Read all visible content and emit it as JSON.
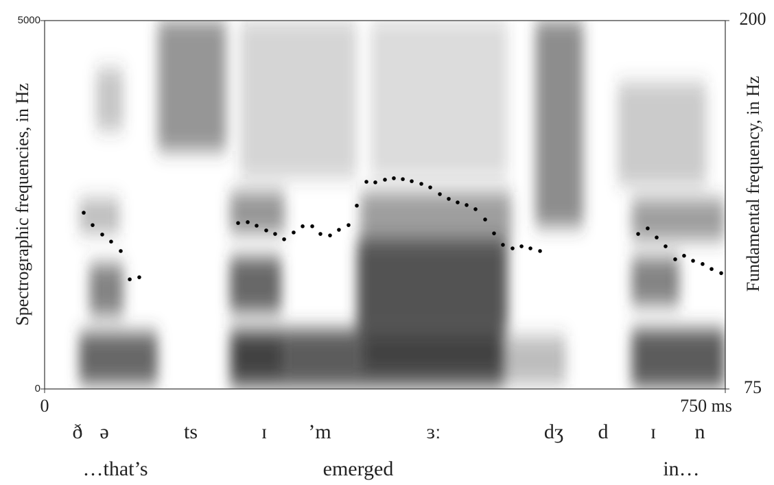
{
  "chart_data": {
    "type": "scatter",
    "y_label": "Spectrographic frequencies, in Hz",
    "y2_label": "Fundamental frequency, in Hz",
    "xlim": [
      0,
      750
    ],
    "xticks": [
      0,
      {
        "value": 750,
        "label": "750 ms"
      }
    ],
    "ylim": [
      0,
      5000
    ],
    "yticks": [
      0,
      5000
    ],
    "y2lim": [
      75,
      200
    ],
    "y2ticks": [
      75,
      200
    ],
    "series": [
      {
        "color": "#000000",
        "axis": "y2",
        "x": [
          43.1,
          52.9,
          63.5,
          73.3,
          83.9,
          93.8,
          104.3,
          213.2,
          223.8,
          233.6,
          244.2,
          254.0,
          263.9,
          274.4,
          284.3,
          294.9,
          303.9,
          314.5,
          324.3,
          334.9,
          344.0,
          354.6,
          364.4,
          375.0,
          384.8,
          394.7,
          404.5,
          415.1,
          424.9,
          435.5,
          445.3,
          455.1,
          465.0,
          474.8,
          485.4,
          495.2,
          505.0,
          515.6,
          525.5,
          535.3,
          545.9,
          654.0,
          664.5,
          674.4,
          684.2,
          694.8,
          704.6,
          714.5,
          725.0,
          734.9,
          745.5
        ],
        "values": [
          134.8,
          130.6,
          127.4,
          125.0,
          121.8,
          112.2,
          112.9,
          131.3,
          131.6,
          130.4,
          128.8,
          127.6,
          125.8,
          128.1,
          130.2,
          130.2,
          127.6,
          127.1,
          129.0,
          130.6,
          137.2,
          145.3,
          145.1,
          146.0,
          146.5,
          146.2,
          145.5,
          144.6,
          143.4,
          141.1,
          139.5,
          138.3,
          137.4,
          136.0,
          132.5,
          127.8,
          123.9,
          122.7,
          123.4,
          122.7,
          121.8,
          127.6,
          129.5,
          126.4,
          123.4,
          119.0,
          120.2,
          118.5,
          117.4,
          115.7,
          114.3
        ]
      }
    ]
  },
  "transcription": {
    "segments": [
      "ð",
      "ə",
      "ts",
      "ɪ",
      "’m",
      "ɜː",
      "dʒ",
      "d",
      "ɪ",
      "n"
    ],
    "words": [
      "…that’s",
      "emerged",
      "in…"
    ]
  }
}
